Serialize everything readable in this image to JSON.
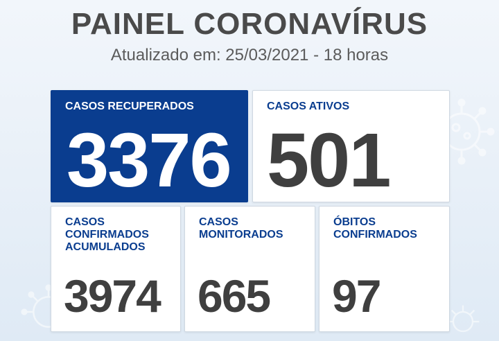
{
  "header": {
    "title": "PAINEL CORONAVÍRUS",
    "subtitle": "Atualizado em: 25/03/2021 - 18 horas"
  },
  "cards": {
    "recuperados": {
      "label": "CASOS RECUPERADOS",
      "value": "3376"
    },
    "ativos": {
      "label": "CASOS ATIVOS",
      "value": "501"
    },
    "confirmados": {
      "label_line1": "CASOS",
      "label_line2": "CONFIRMADOS",
      "label_line3": "ACUMULADOS",
      "value": "3974"
    },
    "monitorados": {
      "label_line1": "CASOS",
      "label_line2": "MONITORADOS",
      "value": "665"
    },
    "obitos": {
      "label_line1": "ÓBITOS",
      "label_line2": "CONFIRMADOS",
      "value": "97"
    }
  },
  "colors": {
    "primary_blue": "#0a3d8f",
    "number_gray": "#3f3f3f",
    "title_gray": "#4a4a4a",
    "background": "#dfeaf5"
  },
  "decorations": [
    "virus-icon"
  ]
}
